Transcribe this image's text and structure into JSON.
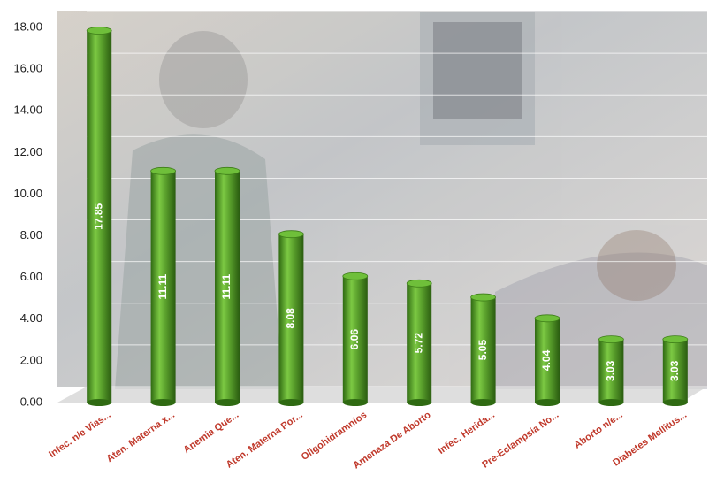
{
  "chart_data": {
    "type": "bar",
    "categories": [
      "Infec. n/e Vias...",
      "Aten. Materna x...",
      "Anemia Que...",
      "Aten. Materna Por...",
      "Oligohidramnios",
      "Amenaza De Aborto",
      "Infec. Herida...",
      "Pre-Eclampsia No...",
      "Aborto n/e...",
      "Diabetes Mellitus..."
    ],
    "values": [
      17.85,
      11.11,
      11.11,
      8.08,
      6.06,
      5.72,
      5.05,
      4.04,
      3.03,
      3.03
    ],
    "color": "#5aa02c",
    "ylim": [
      0,
      18
    ],
    "yticks": [
      {
        "value": 0,
        "label": "0.00"
      },
      {
        "value": 2,
        "label": "2.00"
      },
      {
        "value": 4,
        "label": "4.00"
      },
      {
        "value": 6,
        "label": "6.00"
      },
      {
        "value": 8,
        "label": "8.00"
      },
      {
        "value": 10,
        "label": "10.00"
      },
      {
        "value": 12,
        "label": "12.00"
      },
      {
        "value": 14,
        "label": "14.00"
      },
      {
        "value": 16,
        "label": "16.00"
      },
      {
        "value": 18,
        "label": "18.00"
      }
    ],
    "grid": true
  }
}
